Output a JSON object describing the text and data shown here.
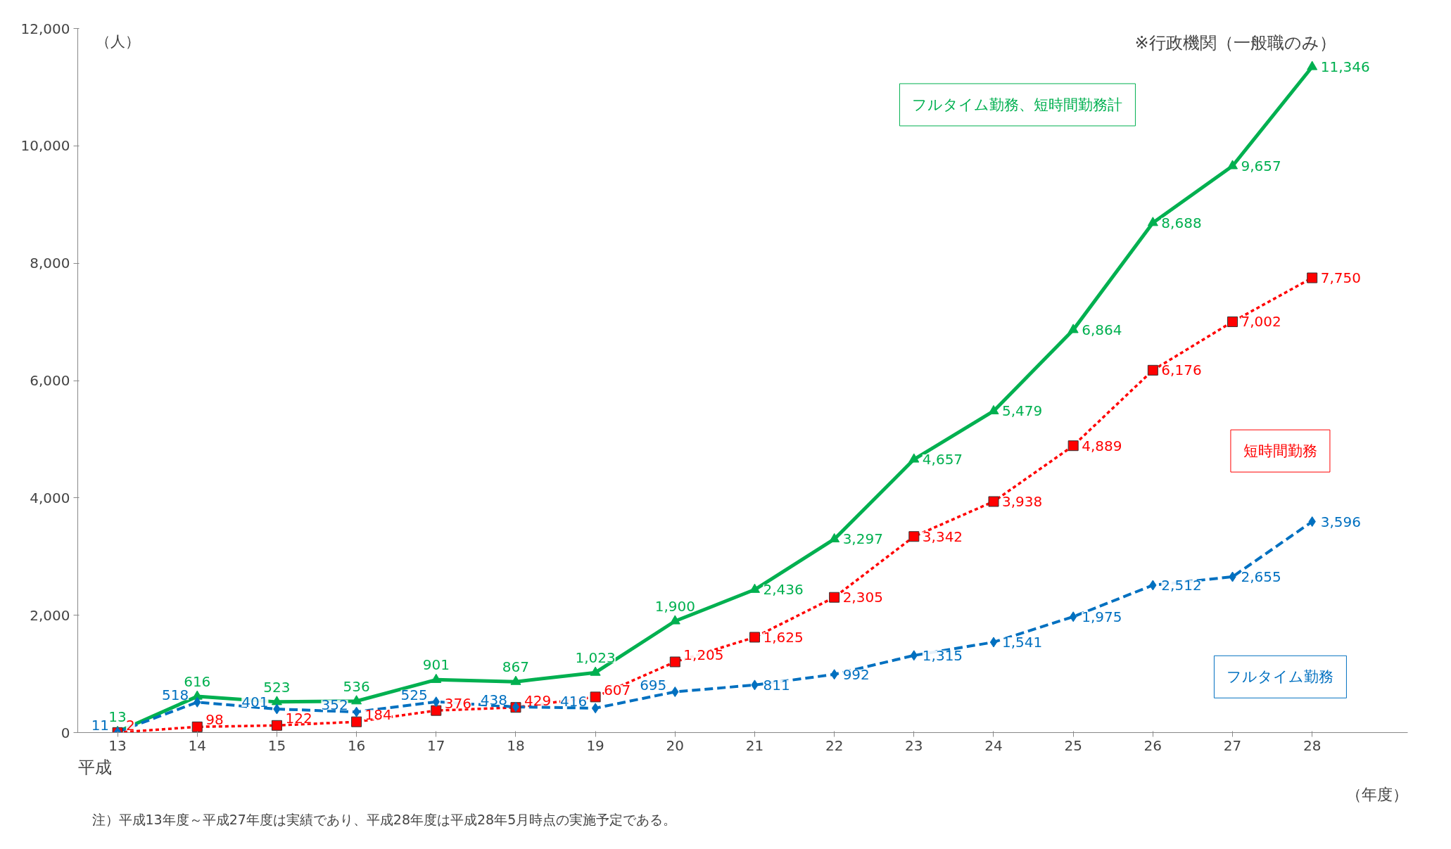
{
  "chart_data": {
    "type": "line",
    "ylabel": "（人）",
    "xlabel": "（年度）",
    "categories": [
      "13",
      "14",
      "15",
      "16",
      "17",
      "18",
      "19",
      "20",
      "21",
      "22",
      "23",
      "24",
      "25",
      "26",
      "27",
      "28"
    ],
    "ylim": [
      0,
      12000
    ],
    "yticks": [
      {
        "value": 0,
        "label": "0"
      },
      {
        "value": 2000,
        "label": "2,000"
      },
      {
        "value": 4000,
        "label": "4,000"
      },
      {
        "value": 6000,
        "label": "6,000"
      },
      {
        "value": 8000,
        "label": "8,000"
      },
      {
        "value": 10000,
        "label": "10,000"
      },
      {
        "value": 12000,
        "label": "12,000"
      }
    ],
    "grid": false,
    "annotations": [
      "平成",
      "※行政機関（一般職のみ）",
      "注）平成13年度～平成27年度は実績であり、平成28年度は平成28年5月時点の実施予定である。"
    ],
    "series": [
      {
        "name": "フルタイム勤務、短時間勤務計",
        "color": "#00b050",
        "marker": "triangle",
        "line_style": "solid",
        "values": [
          13,
          616,
          523,
          536,
          901,
          867,
          1023,
          1900,
          2436,
          3297,
          4657,
          5479,
          6864,
          8688,
          9657,
          11346
        ],
        "value_labels": [
          "13",
          "616",
          "523",
          "536",
          "901",
          "867",
          "1,023",
          "1,900",
          "2,436",
          "3,297",
          "4,657",
          "5,479",
          "6,864",
          "8,688",
          "9,657",
          "11,346"
        ]
      },
      {
        "name": "短時間勤務",
        "color": "#ff0000",
        "marker": "square",
        "line_style": "dotted",
        "values": [
          2,
          98,
          122,
          184,
          376,
          429,
          607,
          1205,
          1625,
          2305,
          3342,
          3938,
          4889,
          6176,
          7002,
          7750
        ],
        "value_labels": [
          "2",
          "98",
          "122",
          "184",
          "376",
          "429",
          "607",
          "1,205",
          "1,625",
          "2,305",
          "3,342",
          "3,938",
          "4,889",
          "6,176",
          "7,002",
          "7,750"
        ]
      },
      {
        "name": "フルタイム勤務",
        "color": "#0070c0",
        "marker": "diamond",
        "line_style": "dashed",
        "values": [
          11,
          518,
          401,
          352,
          525,
          438,
          416,
          695,
          811,
          992,
          1315,
          1541,
          1975,
          2512,
          2655,
          3596
        ],
        "value_labels": [
          "11",
          "518",
          "401",
          "352",
          "525",
          "438",
          "416",
          "695",
          "811",
          "992",
          "1,315",
          "1,541",
          "1,975",
          "2,512",
          "2,655",
          "3,596"
        ]
      }
    ]
  }
}
